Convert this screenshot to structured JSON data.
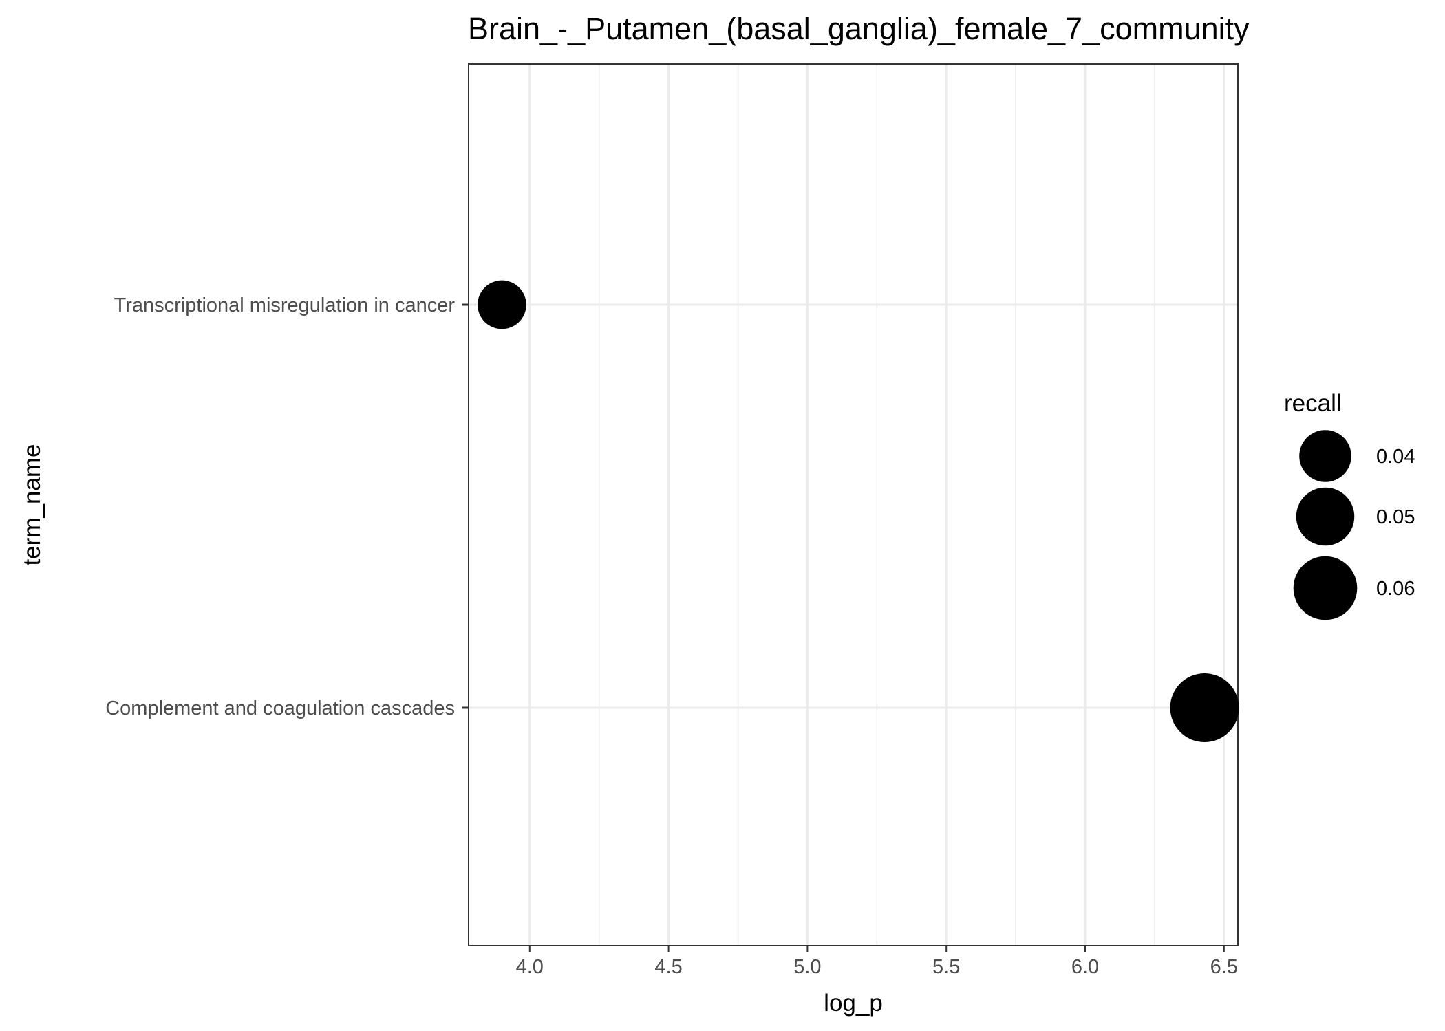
{
  "chart_data": {
    "type": "scatter",
    "title": "Brain_-_Putamen_(basal_ganglia)_female_7_community",
    "xlabel": "log_p",
    "ylabel": "term_name",
    "xlim": [
      3.78,
      6.55
    ],
    "x_ticks": [
      4.0,
      4.5,
      5.0,
      5.5,
      6.0,
      6.5
    ],
    "x_tick_labels": [
      "4.0",
      "4.5",
      "5.0",
      "5.5",
      "6.0",
      "6.5"
    ],
    "categories": [
      "Transcriptional misregulation in cancer",
      "Complement and coagulation cascades"
    ],
    "grid": true,
    "points": [
      {
        "term_name": "Transcriptional misregulation in cancer",
        "log_p": 3.9,
        "recall": 0.035
      },
      {
        "term_name": "Complement and coagulation cascades",
        "log_p": 6.43,
        "recall": 0.07
      }
    ],
    "legend": {
      "title": "recall",
      "placement": "right",
      "entries": [
        {
          "label": "0.04",
          "value": 0.04
        },
        {
          "label": "0.05",
          "value": 0.05
        },
        {
          "label": "0.06",
          "value": 0.06
        }
      ]
    },
    "colors": {
      "point": "#000000",
      "grid": "#ebebeb",
      "panel_border": "#333333"
    }
  }
}
